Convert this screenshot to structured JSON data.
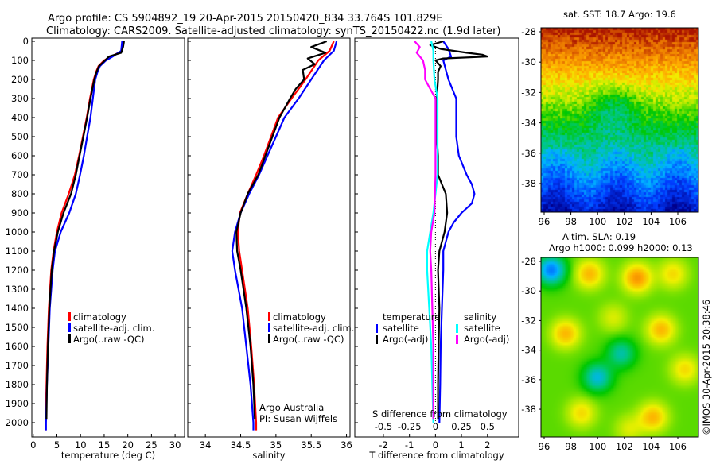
{
  "title": {
    "line1": "Argo profile: CS 5904892_19 20-Apr-2015 20150420_834 33.764S 101.829E",
    "line2": "Climatology: CARS2009. Satellite-adjusted climatology: synTS_20150422.nc (1.9d later)"
  },
  "colors": {
    "climatology": "#ff0000",
    "satellite": "#0000ff",
    "argo": "#000000",
    "sal_satellite": "#00ffff",
    "sal_argo": "#ff00ff"
  },
  "chart_data": [
    {
      "type": "line",
      "id": "temperature",
      "xlabel": "temperature (deg C)",
      "ylabel": "",
      "xlim": [
        -0.3,
        32
      ],
      "ylim": [
        2075,
        0
      ],
      "xticks": [
        0,
        5,
        10,
        15,
        20,
        25,
        30
      ],
      "yticks": [
        0,
        100,
        200,
        300,
        400,
        500,
        600,
        700,
        800,
        900,
        1000,
        1100,
        1200,
        1300,
        1400,
        1500,
        1600,
        1700,
        1800,
        1900,
        2000
      ],
      "legend": [
        "climatology",
        "satellite-adj. clim.",
        "Argo(..raw -QC)"
      ],
      "series": [
        {
          "name": "climatology",
          "color": "#ff0000",
          "depth": [
            0,
            50,
            80,
            100,
            130,
            160,
            200,
            300,
            400,
            500,
            600,
            700,
            800,
            900,
            1000,
            1100,
            1200,
            1400,
            1600,
            1800,
            2000,
            2040
          ],
          "values": [
            19,
            18.8,
            16.5,
            15,
            13.8,
            13.3,
            12.8,
            12,
            11.3,
            10.5,
            9.7,
            8.8,
            7.5,
            6,
            5,
            4.3,
            3.8,
            3.3,
            3,
            2.8,
            2.6,
            2.6
          ]
        },
        {
          "name": "satellite-adj. clim.",
          "color": "#0000ff",
          "depth": [
            0,
            50,
            80,
            100,
            130,
            160,
            200,
            300,
            400,
            500,
            600,
            700,
            800,
            900,
            1000,
            1100,
            1200,
            1400,
            1600,
            1800,
            2000,
            2040
          ],
          "values": [
            18.8,
            18.6,
            16.8,
            15.4,
            14.1,
            13.6,
            13.1,
            12.6,
            12.1,
            11.4,
            10.7,
            9.9,
            9,
            7.6,
            5.8,
            4.6,
            4.1,
            3.5,
            3.2,
            2.9,
            2.7,
            2.7
          ]
        },
        {
          "name": "Argo(..raw -QC)",
          "color": "#000000",
          "depth": [
            0,
            30,
            60,
            80,
            100,
            130,
            160,
            200,
            300,
            400,
            500,
            600,
            700,
            800,
            900,
            1000,
            1100,
            1200,
            1400,
            1600,
            1800,
            1980
          ],
          "values": [
            19.2,
            19,
            18.6,
            16,
            15.2,
            13.9,
            13.4,
            12.9,
            12.1,
            11.4,
            10.6,
            9.8,
            9,
            8,
            6.4,
            5.2,
            4.4,
            3.9,
            3.4,
            3.1,
            2.9,
            2.8
          ]
        }
      ]
    },
    {
      "type": "line",
      "id": "salinity",
      "xlabel": "salinity",
      "ylabel": "",
      "xlim": [
        33.75,
        36.05
      ],
      "ylim": [
        2075,
        0
      ],
      "xticks": [
        34,
        34.5,
        35,
        35.5,
        36
      ],
      "legend": [
        "climatology",
        "satellite-adj. clim.",
        "Argo(..raw -QC)"
      ],
      "annotation": [
        "Argo Australia",
        "PI: Susan Wijffels"
      ],
      "series": [
        {
          "name": "climatology",
          "color": "#ff0000",
          "depth": [
            0,
            50,
            100,
            200,
            300,
            400,
            500,
            600,
            700,
            800,
            900,
            1000,
            1100,
            1200,
            1400,
            1600,
            1800,
            2000,
            2040
          ],
          "values": [
            35.82,
            35.76,
            35.6,
            35.42,
            35.22,
            35.03,
            34.93,
            34.83,
            34.72,
            34.6,
            34.49,
            34.46,
            34.48,
            34.52,
            34.6,
            34.65,
            34.69,
            34.72,
            34.72
          ]
        },
        {
          "name": "satellite-adj. clim.",
          "color": "#0000ff",
          "depth": [
            0,
            50,
            100,
            200,
            300,
            400,
            500,
            600,
            700,
            800,
            900,
            1000,
            1100,
            1200,
            1400,
            1600,
            1800,
            2000,
            2040
          ],
          "values": [
            35.86,
            35.82,
            35.68,
            35.5,
            35.32,
            35.12,
            35.0,
            34.88,
            34.76,
            34.62,
            34.5,
            34.42,
            34.38,
            34.42,
            34.52,
            34.58,
            34.64,
            34.68,
            34.68
          ]
        },
        {
          "name": "Argo(..raw -QC)",
          "color": "#000000",
          "depth": [
            0,
            30,
            60,
            90,
            120,
            150,
            200,
            250,
            300,
            400,
            500,
            600,
            700,
            800,
            900,
            1000,
            1100,
            1200,
            1400,
            1600,
            1800,
            1980
          ],
          "values": [
            35.72,
            35.5,
            35.7,
            35.45,
            35.55,
            35.38,
            35.4,
            35.28,
            35.2,
            35.05,
            34.95,
            34.85,
            34.75,
            34.6,
            34.5,
            34.44,
            34.45,
            34.5,
            34.58,
            34.64,
            34.68,
            34.7
          ]
        }
      ]
    },
    {
      "type": "line",
      "id": "differences",
      "xlabel": "T difference from climatology",
      "xlabel2": "S difference from climatology",
      "xlim": [
        -3.1,
        3.2
      ],
      "ylim": [
        2075,
        0
      ],
      "xticks": [
        -2,
        -1,
        0,
        1,
        2
      ],
      "xticks_S": [
        "-0.5",
        "-0.25",
        "0",
        "0.25",
        "0.5"
      ],
      "legend_headers": [
        "temperature",
        "salinity"
      ],
      "legend": [
        "satellite",
        "Argo(-adj)",
        "satellite",
        "Argo(-adj)"
      ],
      "series": [
        {
          "name": "temperature satellite",
          "color": "#0000ff",
          "unit": "T",
          "depth": [
            0,
            40,
            80,
            100,
            150,
            200,
            300,
            400,
            500,
            600,
            700,
            750,
            800,
            850,
            900,
            950,
            1000,
            1100,
            1200,
            1400,
            1600,
            1800,
            2000
          ],
          "values": [
            0.3,
            0.5,
            0.6,
            0.3,
            0.4,
            0.5,
            0.8,
            0.8,
            0.8,
            0.9,
            1.2,
            1.4,
            1.5,
            1.4,
            1.0,
            0.7,
            0.5,
            0.3,
            0.3,
            0.25,
            0.2,
            0.18,
            0.15
          ]
        },
        {
          "name": "temperature Argo(-adj)",
          "color": "#000000",
          "unit": "T",
          "depth": [
            0,
            20,
            40,
            60,
            70,
            80,
            90,
            100,
            130,
            160,
            200,
            300,
            400,
            500,
            600,
            700,
            800,
            900,
            1000,
            1100,
            1200,
            1400,
            1600,
            1800,
            1980
          ],
          "values": [
            0.3,
            -0.2,
            0.2,
            1.2,
            1.8,
            2.0,
            0.3,
            0.0,
            0.2,
            0.1,
            0.1,
            0.05,
            0.05,
            0.05,
            0.1,
            0.1,
            0.4,
            0.45,
            0.35,
            0.15,
            0.1,
            0.15,
            0.12,
            0.1,
            0.1
          ]
        },
        {
          "name": "salinity satellite",
          "color": "#00ffff",
          "unit": "S",
          "depth": [
            0,
            50,
            100,
            200,
            300,
            500,
            700,
            800,
            900,
            1000,
            1100,
            1200,
            1400,
            1600,
            1800,
            2000
          ],
          "values": [
            -0.04,
            -0.02,
            -0.02,
            -0.01,
            0.02,
            0.02,
            0.02,
            0.0,
            -0.02,
            -0.05,
            -0.08,
            -0.08,
            -0.06,
            -0.04,
            -0.03,
            -0.02
          ]
        },
        {
          "name": "salinity Argo(-adj)",
          "color": "#ff00ff",
          "unit": "S",
          "depth": [
            0,
            30,
            60,
            100,
            150,
            200,
            250,
            300,
            400,
            500,
            700,
            900,
            1000,
            1100,
            1200,
            1400,
            1600,
            1800,
            1980
          ],
          "values": [
            -0.2,
            -0.15,
            -0.18,
            -0.12,
            -0.1,
            -0.1,
            -0.05,
            0.0,
            0.0,
            0.0,
            0.0,
            -0.01,
            -0.04,
            -0.05,
            -0.04,
            -0.03,
            -0.02,
            -0.02,
            -0.02
          ]
        }
      ]
    }
  ],
  "maps": {
    "sst": {
      "title": "sat. SST: 18.7 Argo: 19.6",
      "lat_ticks": [
        "-28",
        "-30",
        "-32",
        "-34",
        "-36",
        "-38"
      ],
      "lon_ticks": [
        "96",
        "98",
        "100",
        "102",
        "104",
        "106"
      ]
    },
    "sla": {
      "title1": "Altim. SLA: 0.19",
      "title2": "Argo h1000: 0.099 h2000: 0.13",
      "lat_ticks": [
        "-28",
        "-30",
        "-32",
        "-34",
        "-36",
        "-38"
      ],
      "lon_ticks": [
        "96",
        "98",
        "100",
        "102",
        "104",
        "106"
      ]
    }
  },
  "credit": "©IMOS 30-Apr-2015 20:38:46"
}
